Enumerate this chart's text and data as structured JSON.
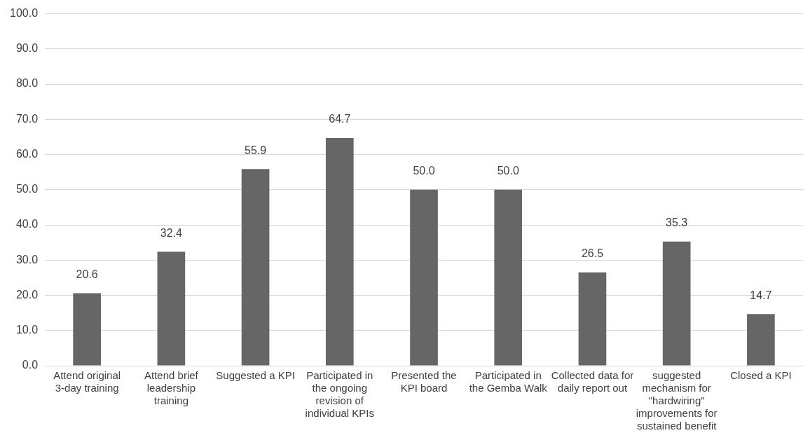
{
  "chart_data": {
    "type": "bar",
    "categories": [
      "Attend original 3-day training",
      "Attend brief leadership training",
      "Suggested a KPI",
      "Participated in the ongoing revision of individual KPIs",
      "Presented the KPI board",
      "Participated in the Gemba Walk",
      "Collected data for daily report out",
      "suggested mechanism for \"hardwiring\" improvements for sustained benefit",
      "Closed a KPI"
    ],
    "values": [
      20.6,
      32.4,
      55.9,
      64.7,
      50.0,
      50.0,
      26.5,
      35.3,
      14.7
    ],
    "value_labels": [
      "20.6",
      "32.4",
      "55.9",
      "64.7",
      "50.0",
      "50.0",
      "26.5",
      "35.3",
      "14.7"
    ],
    "color": "#666666",
    "ylim": [
      0,
      100
    ],
    "yticks": [
      {
        "value": 0,
        "label": "0.0"
      },
      {
        "value": 10,
        "label": "10.0"
      },
      {
        "value": 20,
        "label": "20.0"
      },
      {
        "value": 30,
        "label": "30.0"
      },
      {
        "value": 40,
        "label": "40.0"
      },
      {
        "value": 50,
        "label": "50.0"
      },
      {
        "value": 60,
        "label": "60.0"
      },
      {
        "value": 70,
        "label": "70.0"
      },
      {
        "value": 80,
        "label": "80.0"
      },
      {
        "value": 90,
        "label": "90.0"
      },
      {
        "value": 100,
        "label": "100.0"
      }
    ],
    "grid": "y"
  }
}
